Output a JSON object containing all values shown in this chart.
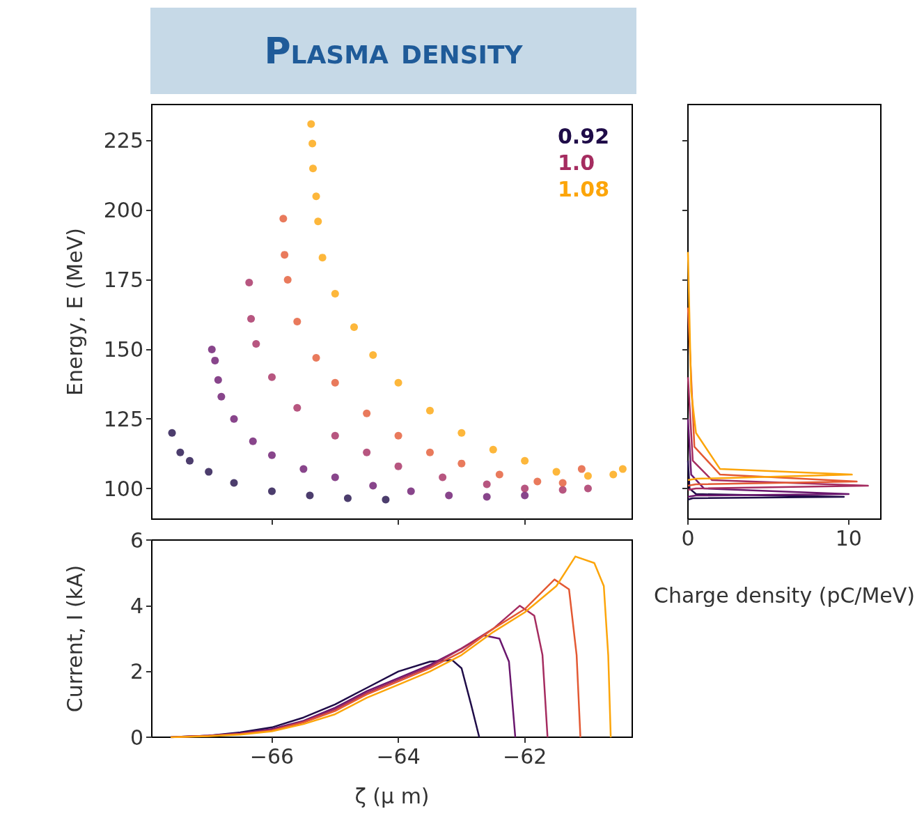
{
  "chart_data": [
    {
      "type": "scatter",
      "title": "Plasma density",
      "ylabel": "Energy, E (MeV)",
      "xlim": [
        -67.9,
        -60.3
      ],
      "xticks": [
        -66,
        -64,
        -62
      ],
      "ylim": [
        89,
        238
      ],
      "yticks": [
        100,
        125,
        150,
        175,
        200,
        225
      ],
      "tick_labels": "y",
      "legend": "top right",
      "marker": "circle",
      "series": [
        {
          "name": "0.92",
          "color": "#1f0c48",
          "x": [
            -67.58,
            -67.45,
            -67.3,
            -67.0,
            -66.6,
            -66.0,
            -65.4,
            -64.8,
            -64.2
          ],
          "values": [
            120,
            113,
            110,
            106,
            102,
            99,
            97.5,
            96.5,
            96
          ]
        },
        {
          "color": "#6a176e",
          "x": [
            -66.95,
            -66.9,
            -66.85,
            -66.8,
            -66.6,
            -66.3,
            -66.0,
            -65.5,
            -65.0,
            -64.4,
            -63.8,
            -63.2,
            -62.6,
            -62.0
          ],
          "values": [
            150,
            146,
            139,
            133,
            125,
            117,
            112,
            107,
            104,
            101,
            99,
            97.5,
            97,
            97.5
          ]
        },
        {
          "name": "1.0",
          "color": "#a52c60",
          "x": [
            -66.36,
            -66.33,
            -66.25,
            -66.0,
            -65.6,
            -65.0,
            -64.5,
            -64.0,
            -63.3,
            -62.6,
            -62.0,
            -61.4,
            -61.0
          ],
          "values": [
            174,
            161,
            152,
            140,
            129,
            119,
            113,
            108,
            104,
            101.5,
            100,
            99.5,
            100
          ]
        },
        {
          "color": "#e35933",
          "x": [
            -65.82,
            -65.8,
            -65.75,
            -65.6,
            -65.3,
            -65.0,
            -64.5,
            -64.0,
            -63.5,
            -63.0,
            -62.4,
            -61.8,
            -61.4,
            -61.1
          ],
          "values": [
            197,
            184,
            175,
            160,
            147,
            138,
            127,
            119,
            113,
            109,
            105,
            102.5,
            102,
            107
          ]
        },
        {
          "name": "1.08",
          "color": "#fca50a",
          "x": [
            -65.38,
            -65.36,
            -65.35,
            -65.3,
            -65.27,
            -65.2,
            -65.0,
            -64.7,
            -64.4,
            -64.0,
            -63.5,
            -63.0,
            -62.5,
            -62.0,
            -61.5,
            -61.0,
            -60.6,
            -60.45
          ],
          "values": [
            231,
            224,
            215,
            205,
            196,
            183,
            170,
            158,
            148,
            138,
            128,
            120,
            114,
            110,
            106,
            104.5,
            105,
            107
          ]
        }
      ]
    },
    {
      "type": "line",
      "xlabel": "ζ (μ m)",
      "ylabel": "Current, I (kA)",
      "xlim": [
        -67.9,
        -60.3
      ],
      "xticks": [
        -66,
        -64,
        -62
      ],
      "ylim": [
        0,
        6
      ],
      "yticks": [
        0,
        2,
        4,
        6
      ],
      "marker": "none",
      "series": [
        {
          "color": "#1f0c48",
          "x": [
            -67.6,
            -67,
            -66.5,
            -66,
            -65.5,
            -65,
            -64.5,
            -64,
            -63.5,
            -63.15,
            -63.0,
            -62.85,
            -62.72
          ],
          "values": [
            0,
            0.05,
            0.15,
            0.3,
            0.6,
            1.0,
            1.5,
            2.0,
            2.3,
            2.35,
            2.1,
            1.0,
            0
          ]
        },
        {
          "color": "#6a176e",
          "x": [
            -67.6,
            -67,
            -66.5,
            -66,
            -65.5,
            -65,
            -64.5,
            -64,
            -63.5,
            -63,
            -62.65,
            -62.4,
            -62.25,
            -62.15
          ],
          "values": [
            0,
            0.05,
            0.12,
            0.25,
            0.5,
            0.9,
            1.4,
            1.8,
            2.2,
            2.7,
            3.1,
            3.0,
            2.3,
            0
          ]
        },
        {
          "color": "#a52c60",
          "x": [
            -67.6,
            -67,
            -66.5,
            -66,
            -65.5,
            -65,
            -64.5,
            -64,
            -63.5,
            -63,
            -62.5,
            -62.08,
            -61.85,
            -61.72,
            -61.64
          ],
          "values": [
            0,
            0.05,
            0.1,
            0.22,
            0.48,
            0.85,
            1.35,
            1.75,
            2.15,
            2.7,
            3.3,
            4.0,
            3.7,
            2.5,
            0
          ]
        },
        {
          "color": "#e35933",
          "x": [
            -67.6,
            -67,
            -66.5,
            -66,
            -65.5,
            -65,
            -64.5,
            -64,
            -63.5,
            -63,
            -62.5,
            -62,
            -61.53,
            -61.3,
            -61.18,
            -61.12
          ],
          "values": [
            0,
            0.04,
            0.1,
            0.2,
            0.45,
            0.8,
            1.3,
            1.7,
            2.1,
            2.6,
            3.3,
            3.9,
            4.8,
            4.5,
            2.5,
            0
          ]
        },
        {
          "color": "#fca50a",
          "x": [
            -67.6,
            -67,
            -66.5,
            -66,
            -65.5,
            -65,
            -64.5,
            -64,
            -63.5,
            -63,
            -62.5,
            -62,
            -61.5,
            -61.2,
            -60.9,
            -60.75,
            -60.68,
            -60.64
          ],
          "values": [
            0,
            0.03,
            0.08,
            0.18,
            0.4,
            0.7,
            1.2,
            1.6,
            2.0,
            2.5,
            3.2,
            3.8,
            4.6,
            5.5,
            5.3,
            4.6,
            2.5,
            0
          ]
        }
      ]
    },
    {
      "type": "line",
      "xlabel": "Charge density (pC/MeV)",
      "xlim": [
        0,
        12
      ],
      "xticks": [
        0,
        10
      ],
      "ylim": [
        89,
        238
      ],
      "yticks": [
        {
          "value": 100,
          "label": null
        },
        {
          "value": 125,
          "label": null
        },
        {
          "value": 150,
          "label": null
        },
        {
          "value": 175,
          "label": null
        },
        {
          "value": 200,
          "label": null
        },
        {
          "value": 225,
          "label": null
        }
      ],
      "tick_labels": "x",
      "marker": "none",
      "series": [
        {
          "color": "#1f0c48",
          "x": [
            0,
            0.1,
            0.5,
            9.7,
            0.3,
            0
          ],
          "values": [
            110,
            100,
            98,
            97,
            96.5,
            96
          ]
        },
        {
          "color": "#6a176e",
          "x": [
            0,
            0.2,
            1,
            10,
            0.5,
            0
          ],
          "values": [
            125,
            105,
            100,
            98,
            97.5,
            97
          ]
        },
        {
          "color": "#a52c60",
          "x": [
            0,
            0.3,
            1.5,
            11.2,
            0.5,
            0
          ],
          "values": [
            140,
            110,
            103,
            101,
            100,
            99.5
          ]
        },
        {
          "color": "#e35933",
          "x": [
            0,
            0.4,
            2,
            10.5,
            0.5,
            0
          ],
          "values": [
            165,
            115,
            105,
            102.5,
            101.5,
            101
          ]
        },
        {
          "color": "#fca50a",
          "x": [
            0,
            0.2,
            0.5,
            2,
            10.2,
            0.5,
            0
          ],
          "values": [
            185,
            135,
            120,
            107,
            105,
            103.5,
            103
          ]
        }
      ]
    }
  ]
}
